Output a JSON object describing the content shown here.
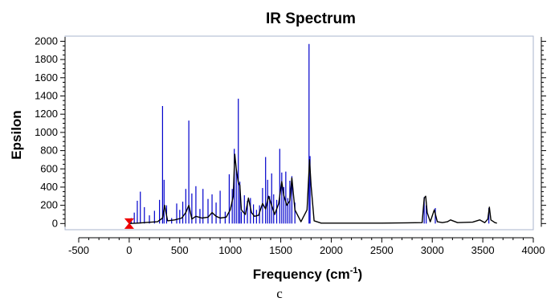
{
  "chart_data": {
    "type": "line",
    "title": "IR Spectrum",
    "xlabel": "Frequency (cm",
    "xlabel_superscript": "-1",
    "xlabel_suffix": ")",
    "ylabel": "Epsilon",
    "xlim": [
      -500,
      4000
    ],
    "ylim": [
      -50,
      2030
    ],
    "x_ticks": [
      -500,
      0,
      500,
      1000,
      1500,
      2000,
      2500,
      3000,
      3500,
      4000
    ],
    "y_ticks": [
      0,
      200,
      400,
      600,
      800,
      1000,
      1200,
      1400,
      1600,
      1800,
      2000
    ],
    "grid": false,
    "colors": {
      "spectrum": "#000000",
      "stick": "#0000cc",
      "marker": "#ee0000",
      "frame": "#aab4cc"
    },
    "series": [
      {
        "kind": "broadened-spectrum",
        "x": [
          0,
          80,
          150,
          220,
          280,
          330,
          350,
          380,
          450,
          520,
          560,
          590,
          620,
          660,
          720,
          780,
          820,
          860,
          900,
          960,
          1000,
          1030,
          1045,
          1060,
          1080,
          1095,
          1110,
          1150,
          1180,
          1210,
          1240,
          1280,
          1320,
          1350,
          1380,
          1410,
          1440,
          1480,
          1510,
          1530,
          1560,
          1590,
          1610,
          1640,
          1700,
          1760,
          1785,
          1800,
          1830,
          1900,
          2000,
          2500,
          2900,
          2920,
          2935,
          2950,
          2980,
          3020,
          3050,
          3100,
          3150,
          3180,
          3250,
          3400,
          3470,
          3520,
          3550,
          3565,
          3580,
          3620,
          3640
        ],
        "y": [
          0,
          5,
          10,
          15,
          20,
          60,
          200,
          30,
          40,
          60,
          120,
          200,
          50,
          80,
          60,
          70,
          120,
          80,
          60,
          70,
          150,
          300,
          760,
          600,
          450,
          420,
          150,
          100,
          280,
          120,
          80,
          90,
          220,
          160,
          300,
          200,
          100,
          220,
          460,
          310,
          200,
          250,
          500,
          150,
          20,
          150,
          700,
          420,
          30,
          5,
          5,
          5,
          10,
          280,
          300,
          120,
          20,
          150,
          20,
          10,
          20,
          40,
          10,
          15,
          40,
          10,
          50,
          180,
          40,
          10,
          5
        ]
      },
      {
        "kind": "sticks",
        "x": [
          20,
          50,
          80,
          110,
          150,
          200,
          250,
          300,
          330,
          345,
          370,
          420,
          470,
          500,
          530,
          560,
          590,
          620,
          660,
          700,
          730,
          780,
          820,
          860,
          900,
          950,
          990,
          1020,
          1040,
          1060,
          1080,
          1095,
          1110,
          1140,
          1170,
          1200,
          1230,
          1260,
          1290,
          1320,
          1350,
          1370,
          1390,
          1410,
          1430,
          1460,
          1490,
          1510,
          1530,
          1550,
          1570,
          1590,
          1610,
          1640,
          1780,
          1790,
          2920,
          2940,
          3030,
          3560
        ],
        "y": [
          60,
          120,
          250,
          350,
          180,
          90,
          140,
          260,
          1290,
          480,
          200,
          60,
          220,
          150,
          240,
          380,
          1130,
          330,
          410,
          160,
          380,
          270,
          320,
          230,
          360,
          130,
          540,
          380,
          820,
          600,
          1370,
          460,
          130,
          310,
          250,
          280,
          210,
          150,
          200,
          390,
          730,
          480,
          300,
          550,
          320,
          260,
          820,
          560,
          400,
          570,
          280,
          470,
          520,
          230,
          1970,
          740,
          290,
          200,
          170,
          170
        ]
      }
    ]
  },
  "caption": "c"
}
